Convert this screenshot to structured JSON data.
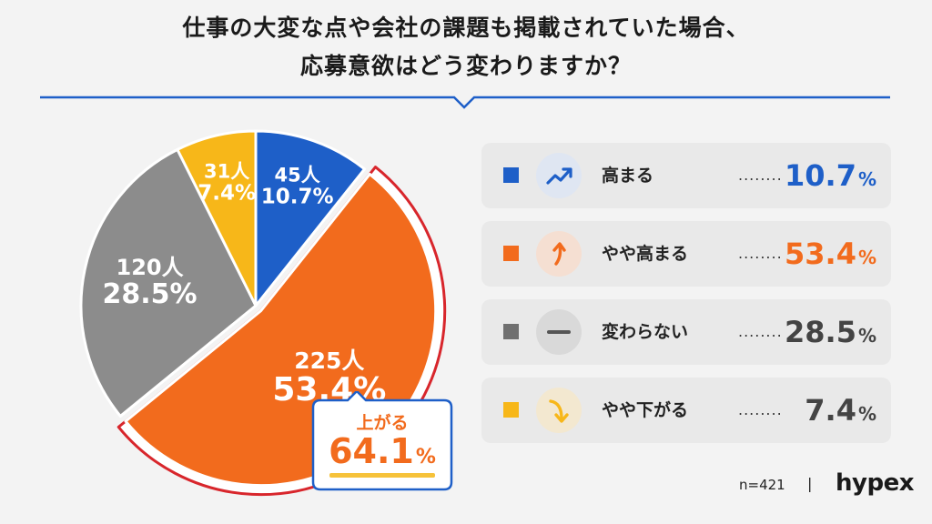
{
  "title": {
    "line1": "仕事の大変な点や会社の課題も掲載されていた場合、",
    "line2": "応募意欲はどう変わりますか？"
  },
  "colors": {
    "accent_blue": "#1e5fc8",
    "orange": "#f26b1d",
    "gray": "#8c8c8c",
    "yellow": "#f7b719",
    "highlight_border": "#d8262c",
    "legend_bg": "#e9e9e9"
  },
  "chart_data": {
    "type": "pie",
    "total_label": "n=421",
    "slices": [
      {
        "name": "高まる",
        "count_label": "45人",
        "value": 10.7,
        "pct_label": "10.7%",
        "color": "#1e5fc8",
        "value_color": "#1e5fc8",
        "icon": "trending-up-icon",
        "icon_bg": "#e3e9f3"
      },
      {
        "name": "やや高まる",
        "count_label": "225人",
        "value": 53.4,
        "pct_label": "53.4%",
        "color": "#f26b1d",
        "value_color": "#f26b1d",
        "icon": "arrow-up-icon",
        "icon_bg": "#f7e2d6"
      },
      {
        "name": "変わらない",
        "count_label": "120人",
        "value": 28.5,
        "pct_label": "28.5%",
        "color": "#8c8c8c",
        "value_color": "#444444",
        "icon": "minus-icon",
        "icon_bg": "#dcdcdc"
      },
      {
        "name": "やや下がる",
        "count_label": "31人",
        "value": 7.4,
        "pct_label": "7.4%",
        "color": "#f7b719",
        "value_color": "#444444",
        "icon": "arrow-down-right-icon",
        "icon_bg": "#f5ead3"
      }
    ],
    "callout": {
      "label": "上がる",
      "value": "64.1",
      "unit": "%"
    }
  },
  "legend": {
    "dots": "........",
    "items": [
      {
        "label": "高まる",
        "value": "10.7",
        "unit": "%"
      },
      {
        "label": "やや高まる",
        "value": "53.4",
        "unit": "%"
      },
      {
        "label": "変わらない",
        "value": "28.5",
        "unit": "%"
      },
      {
        "label": "やや下がる",
        "value": "7.4",
        "unit": "%"
      }
    ]
  },
  "footer": {
    "n": "n=421",
    "separator": "|",
    "brand": "hypex"
  }
}
